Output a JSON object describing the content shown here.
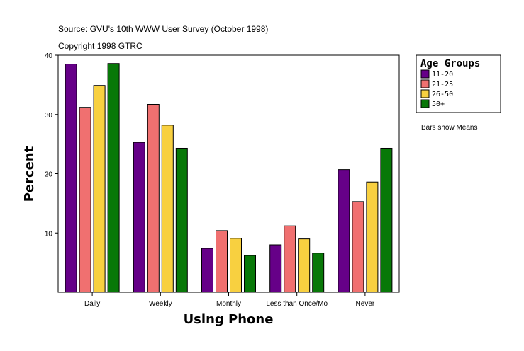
{
  "source_line": "Source: GVU's 10th WWW User Survey (October 1998)",
  "copyright_line": "Copyright 1998 GTRC",
  "note": "Bars show Means",
  "chart_data": {
    "type": "bar",
    "xlabel": "Using Phone",
    "ylabel": "Percent",
    "ylim": [
      0,
      40
    ],
    "yticks": [
      10,
      20,
      30,
      40
    ],
    "categories": [
      "Daily",
      "Weekly",
      "Monthly",
      "Less than Once/Mo",
      "Never"
    ],
    "legend_title": "Age Groups",
    "legend_position": "top-right",
    "series": [
      {
        "name": "11-20",
        "color": "#660088",
        "values": [
          38.5,
          25.3,
          7.4,
          8.0,
          20.7
        ]
      },
      {
        "name": "21-25",
        "color": "#f07070",
        "values": [
          31.2,
          31.7,
          10.4,
          11.2,
          15.3
        ]
      },
      {
        "name": "26-50",
        "color": "#f8d040",
        "values": [
          34.9,
          28.2,
          9.1,
          9.0,
          18.6
        ]
      },
      {
        "name": "50+",
        "color": "#087808",
        "values": [
          38.6,
          24.3,
          6.2,
          6.6,
          24.3
        ]
      }
    ]
  }
}
